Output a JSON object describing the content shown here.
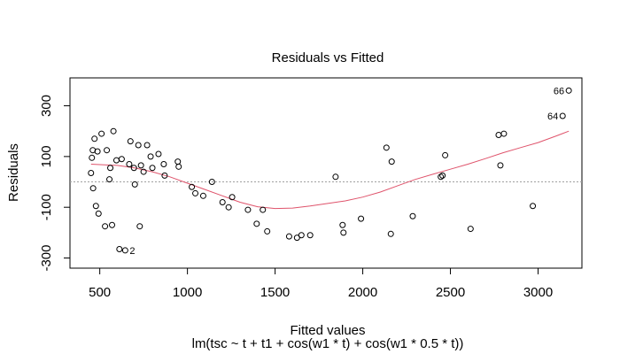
{
  "chart_data": {
    "type": "scatter",
    "title": "Residuals vs Fitted",
    "xlabel": "Fitted values",
    "ylabel": "Residuals",
    "subtitle": "lm(tsc ~ t + t1 + cos(w1 * t) + cos(w1 * 0.5 * t))",
    "xlim": [
      330,
      3250
    ],
    "ylim": [
      -340,
      410
    ],
    "xticks": [
      500,
      1000,
      1500,
      2000,
      2500,
      3000
    ],
    "yticks": [
      -300,
      -100,
      100,
      300
    ],
    "grid": false,
    "reference_line_y": 0,
    "colors": {
      "points": "#000000",
      "smooth": "#df536b",
      "reference": "#a0a0a0"
    },
    "points": [
      {
        "x": 450,
        "y": 35
      },
      {
        "x": 455,
        "y": 95
      },
      {
        "x": 460,
        "y": 125
      },
      {
        "x": 470,
        "y": 170
      },
      {
        "x": 462,
        "y": -25
      },
      {
        "x": 478,
        "y": -95
      },
      {
        "x": 493,
        "y": -125
      },
      {
        "x": 487,
        "y": 120
      },
      {
        "x": 510,
        "y": 190
      },
      {
        "x": 530,
        "y": -175
      },
      {
        "x": 540,
        "y": 125
      },
      {
        "x": 555,
        "y": 10
      },
      {
        "x": 560,
        "y": 55
      },
      {
        "x": 570,
        "y": -170
      },
      {
        "x": 578,
        "y": 200
      },
      {
        "x": 595,
        "y": 85
      },
      {
        "x": 612,
        "y": -265
      },
      {
        "x": 625,
        "y": 90
      },
      {
        "x": 645,
        "y": -270
      },
      {
        "x": 675,
        "y": 160
      },
      {
        "x": 668,
        "y": 70
      },
      {
        "x": 695,
        "y": 55
      },
      {
        "x": 700,
        "y": -10
      },
      {
        "x": 720,
        "y": 145
      },
      {
        "x": 728,
        "y": -175
      },
      {
        "x": 735,
        "y": 65
      },
      {
        "x": 750,
        "y": 40
      },
      {
        "x": 770,
        "y": 145
      },
      {
        "x": 790,
        "y": 100
      },
      {
        "x": 800,
        "y": 55
      },
      {
        "x": 835,
        "y": 110
      },
      {
        "x": 865,
        "y": 70
      },
      {
        "x": 870,
        "y": 25
      },
      {
        "x": 945,
        "y": 80
      },
      {
        "x": 950,
        "y": 60
      },
      {
        "x": 1025,
        "y": -20
      },
      {
        "x": 1045,
        "y": -45
      },
      {
        "x": 1090,
        "y": -55
      },
      {
        "x": 1140,
        "y": 0
      },
      {
        "x": 1200,
        "y": -80
      },
      {
        "x": 1235,
        "y": -100
      },
      {
        "x": 1255,
        "y": -60
      },
      {
        "x": 1345,
        "y": -110
      },
      {
        "x": 1395,
        "y": -165
      },
      {
        "x": 1430,
        "y": -110
      },
      {
        "x": 1455,
        "y": -195
      },
      {
        "x": 1580,
        "y": -215
      },
      {
        "x": 1625,
        "y": -220
      },
      {
        "x": 1650,
        "y": -210
      },
      {
        "x": 1700,
        "y": -210
      },
      {
        "x": 1845,
        "y": 20
      },
      {
        "x": 1885,
        "y": -170
      },
      {
        "x": 1890,
        "y": -200
      },
      {
        "x": 1990,
        "y": -145
      },
      {
        "x": 2135,
        "y": 135
      },
      {
        "x": 2165,
        "y": 80
      },
      {
        "x": 2160,
        "y": -205
      },
      {
        "x": 2285,
        "y": -135
      },
      {
        "x": 2445,
        "y": 20
      },
      {
        "x": 2455,
        "y": 25
      },
      {
        "x": 2470,
        "y": 105
      },
      {
        "x": 2615,
        "y": -185
      },
      {
        "x": 2775,
        "y": 185
      },
      {
        "x": 2785,
        "y": 65
      },
      {
        "x": 2805,
        "y": 190
      },
      {
        "x": 2970,
        "y": -95
      },
      {
        "x": 3140,
        "y": 260
      },
      {
        "x": 3175,
        "y": 360
      }
    ],
    "labeled_points": [
      {
        "label": "2",
        "x": 645,
        "y": -270,
        "side": "right"
      },
      {
        "label": "64",
        "x": 3140,
        "y": 260,
        "side": "left"
      },
      {
        "label": "66",
        "x": 3175,
        "y": 360,
        "side": "left"
      }
    ],
    "smooth_line": [
      [
        450,
        70
      ],
      [
        600,
        65
      ],
      [
        700,
        55
      ],
      [
        800,
        40
      ],
      [
        900,
        20
      ],
      [
        1000,
        -5
      ],
      [
        1100,
        -30
      ],
      [
        1200,
        -55
      ],
      [
        1300,
        -80
      ],
      [
        1400,
        -98
      ],
      [
        1500,
        -105
      ],
      [
        1600,
        -103
      ],
      [
        1700,
        -95
      ],
      [
        1800,
        -85
      ],
      [
        1900,
        -75
      ],
      [
        2000,
        -60
      ],
      [
        2100,
        -40
      ],
      [
        2200,
        -15
      ],
      [
        2300,
        10
      ],
      [
        2400,
        30
      ],
      [
        2500,
        50
      ],
      [
        2600,
        70
      ],
      [
        2700,
        92
      ],
      [
        2800,
        115
      ],
      [
        2900,
        135
      ],
      [
        3000,
        155
      ],
      [
        3100,
        180
      ],
      [
        3175,
        200
      ]
    ]
  }
}
